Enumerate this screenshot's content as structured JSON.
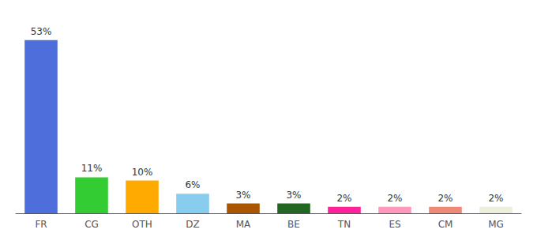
{
  "chart_data": {
    "type": "bar",
    "categories": [
      "FR",
      "CG",
      "OTH",
      "DZ",
      "MA",
      "BE",
      "TN",
      "ES",
      "CM",
      "MG"
    ],
    "values": [
      53,
      11,
      10,
      6,
      3,
      3,
      2,
      2,
      2,
      2
    ],
    "value_labels": [
      "53%",
      "11%",
      "10%",
      "6%",
      "3%",
      "3%",
      "2%",
      "2%",
      "2%",
      "2%"
    ],
    "colors": [
      "#4d6edb",
      "#33cc33",
      "#ffaa00",
      "#88ccee",
      "#aa5500",
      "#226622",
      "#ff2299",
      "#ff99bb",
      "#ee8877",
      "#eeeedd"
    ],
    "ylim": [
      0,
      58
    ],
    "data_labels": true,
    "tick_labels": "x",
    "grid": false
  }
}
